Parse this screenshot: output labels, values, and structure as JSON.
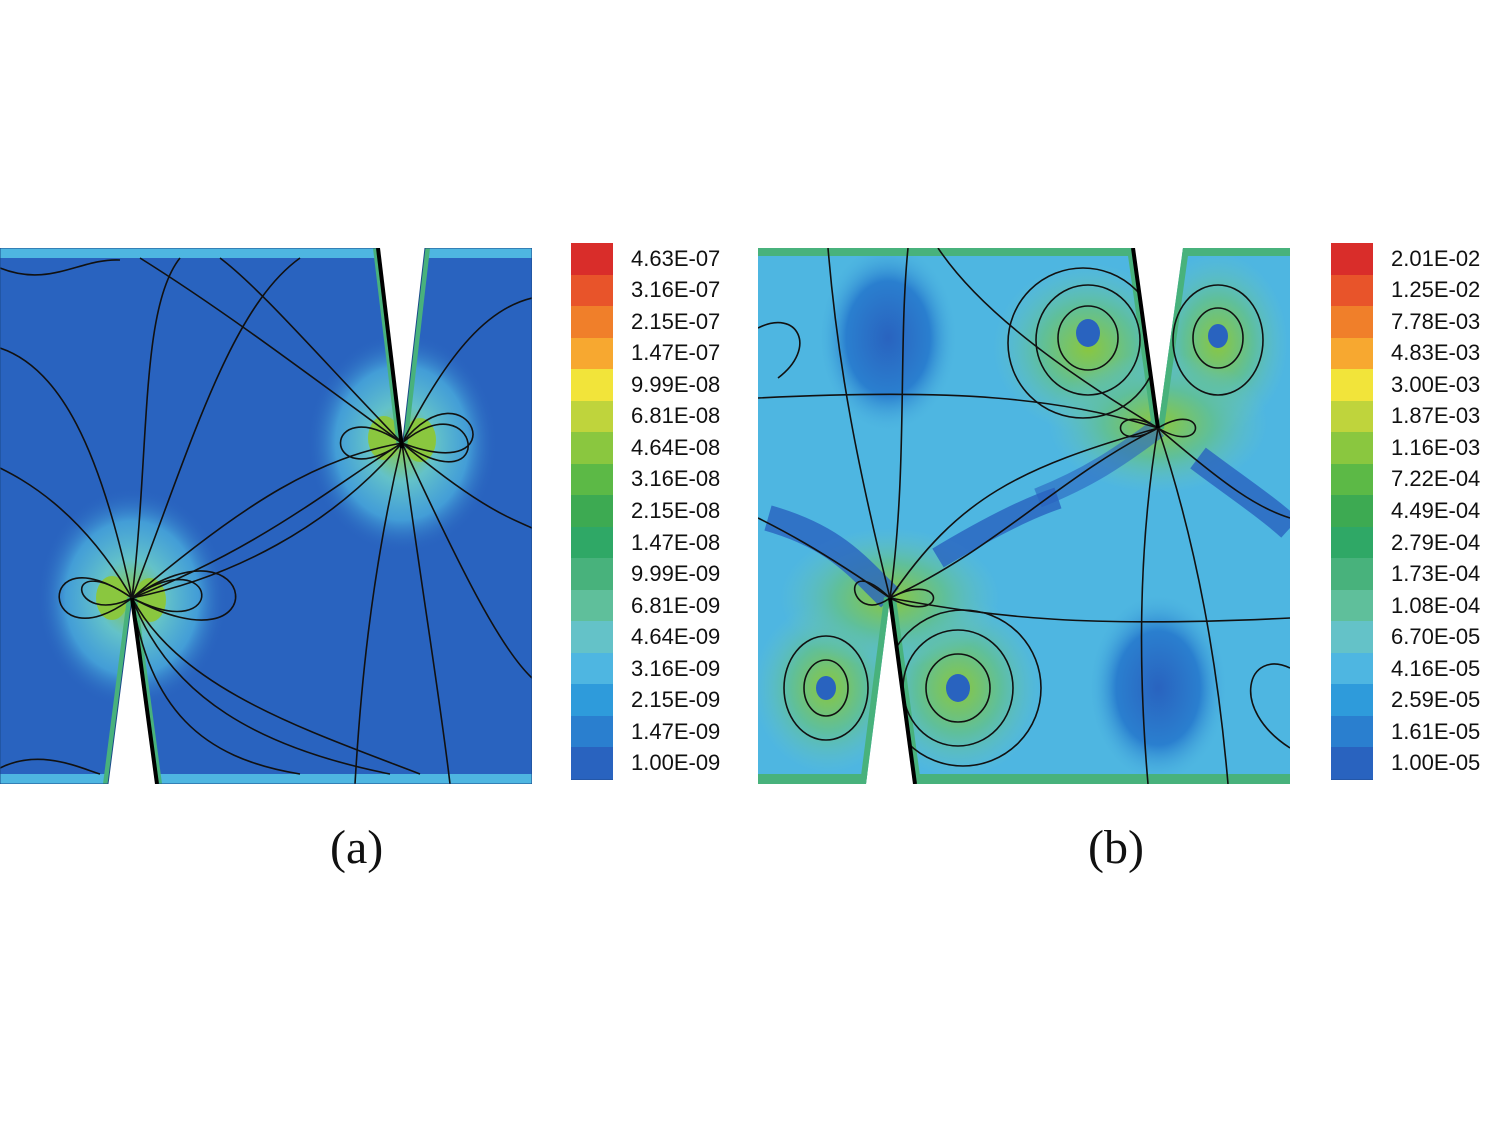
{
  "chart_data": [
    {
      "type": "heatmap",
      "panel_label": "(a)",
      "colorbar_levels": [
        "4.63E-07",
        "3.16E-07",
        "2.15E-07",
        "1.47E-07",
        "9.99E-08",
        "6.81E-08",
        "4.64E-08",
        "3.16E-08",
        "2.15E-08",
        "1.47E-08",
        "9.99E-09",
        "6.81E-09",
        "4.64E-09",
        "3.16E-09",
        "2.15E-09",
        "1.47E-09",
        "1.00E-09"
      ],
      "colorbar_colors": [
        "#d92d2a",
        "#e8542a",
        "#f07f2a",
        "#f7a830",
        "#f2e43a",
        "#bfd43c",
        "#8ac73f",
        "#5cb946",
        "#3daa52",
        "#2fa866",
        "#48b27c",
        "#5fbf9b",
        "#64c2c8",
        "#4eb6e1",
        "#2e9bdb",
        "#2a7fcf",
        "#2963bf"
      ],
      "critical_points": [
        "stagnation",
        "stagnation"
      ],
      "legend_position": "right"
    },
    {
      "type": "heatmap",
      "panel_label": "(b)",
      "colorbar_levels": [
        "2.01E-02",
        "1.25E-02",
        "7.78E-03",
        "4.83E-03",
        "3.00E-03",
        "1.87E-03",
        "1.16E-03",
        "7.22E-04",
        "4.49E-04",
        "2.79E-04",
        "1.73E-04",
        "1.08E-04",
        "6.70E-05",
        "4.16E-05",
        "2.59E-05",
        "1.61E-05",
        "1.00E-05"
      ],
      "colorbar_colors": [
        "#d92d2a",
        "#e8542a",
        "#f07f2a",
        "#f7a830",
        "#f2e43a",
        "#bfd43c",
        "#8ac73f",
        "#5cb946",
        "#3daa52",
        "#2fa866",
        "#48b27c",
        "#5fbf9b",
        "#64c2c8",
        "#4eb6e1",
        "#2e9bdb",
        "#2a7fcf",
        "#2963bf"
      ],
      "vortices": 4,
      "legend_position": "right"
    }
  ]
}
